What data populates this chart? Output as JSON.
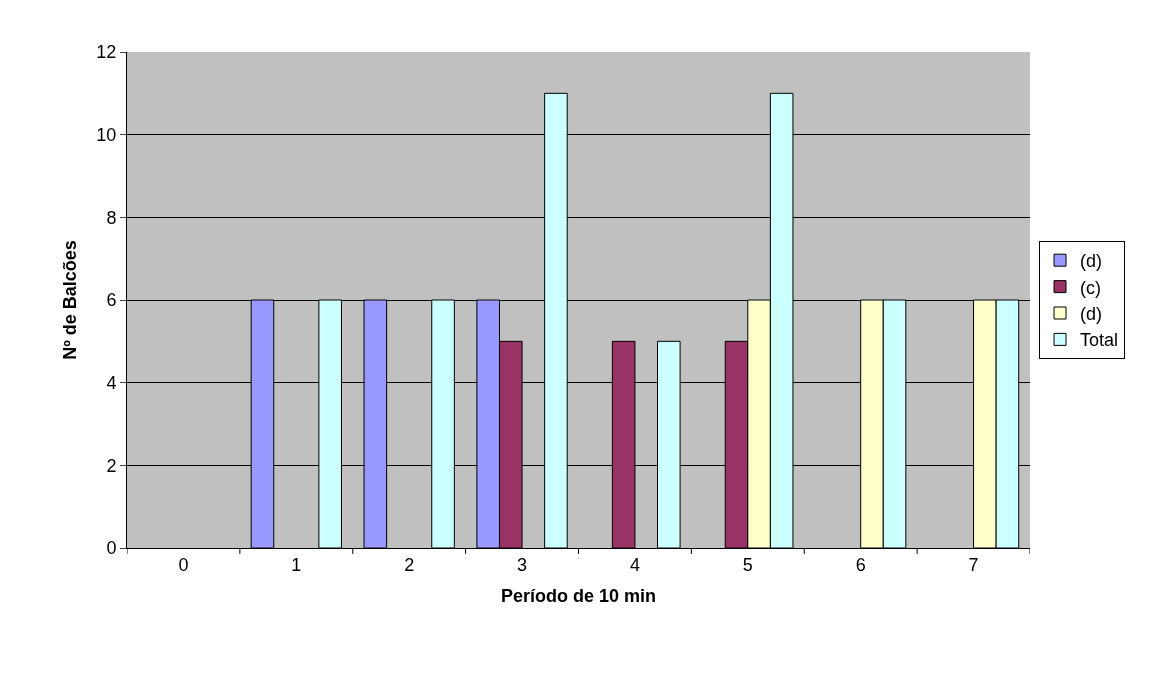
{
  "chart_data": {
    "type": "bar",
    "xlabel": "Período de 10 min",
    "ylabel": "Nº de Balcões",
    "categories": [
      "0",
      "1",
      "2",
      "3",
      "4",
      "5",
      "6",
      "7"
    ],
    "series": [
      {
        "name": "(d)",
        "color": "#9999ff",
        "values": [
          null,
          6,
          6,
          6,
          null,
          null,
          null,
          null
        ]
      },
      {
        "name": "(c)",
        "color": "#993366",
        "values": [
          null,
          null,
          null,
          5,
          5,
          5,
          null,
          null
        ]
      },
      {
        "name": "(d)",
        "color": "#ffffcc",
        "values": [
          null,
          null,
          null,
          null,
          null,
          6,
          6,
          6
        ]
      },
      {
        "name": "Total",
        "color": "#ccffff",
        "values": [
          null,
          6,
          6,
          11,
          5,
          11,
          6,
          6
        ]
      }
    ],
    "ylim": [
      0,
      12
    ],
    "yticks": [
      0,
      2,
      4,
      6,
      8,
      10,
      12
    ],
    "grid": "y",
    "legend": "right"
  }
}
